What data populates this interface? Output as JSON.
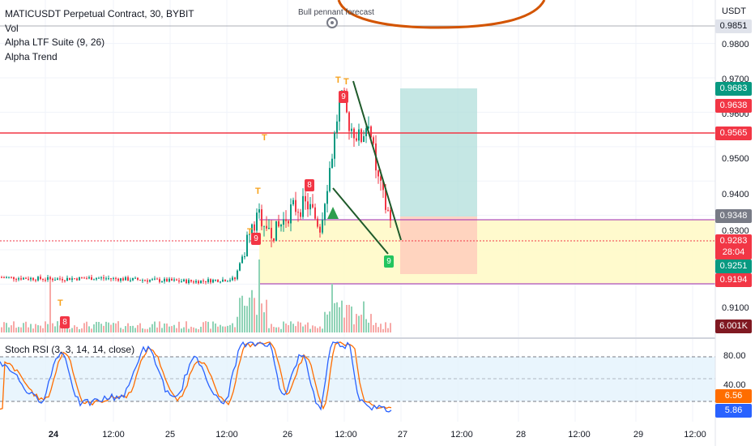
{
  "header": {
    "symbol_line": "MATICUSDT Perpetual Contract, 30, BYBIT",
    "indicators": [
      "Vol",
      "Alpha LTF Suite (9, 26)",
      "Alpha Trend"
    ],
    "currency": "USDT",
    "annotation": "Bull pennant forecast"
  },
  "price_axis": {
    "ticks": [
      "0.9800",
      "0.9700",
      "0.9600",
      "0.9500",
      "0.9400",
      "0.9300",
      "0.9100"
    ],
    "tags": [
      {
        "label": "0.9851",
        "color": "#e0e3eb",
        "text_color": "#131722"
      },
      {
        "label": "0.9683",
        "color": "#089981",
        "text_color": "#ffffff"
      },
      {
        "label": "0.9638",
        "color": "#f23645",
        "text_color": "#ffffff"
      },
      {
        "label": "0.9565",
        "color": "#f23645",
        "text_color": "#ffffff"
      },
      {
        "label": "0.9348",
        "color": "#787b86",
        "text_color": "#ffffff"
      },
      {
        "label": "0.9283",
        "color": "#f23645",
        "text_color": "#ffffff"
      },
      {
        "label": "28:04",
        "color": "#f23645",
        "text_color": "#ffffff"
      },
      {
        "label": "0.9251",
        "color": "#089981",
        "text_color": "#ffffff"
      },
      {
        "label": "0.9194",
        "color": "#f23645",
        "text_color": "#ffffff"
      },
      {
        "label": "6.001K",
        "color": "#801922",
        "text_color": "#ffffff"
      }
    ]
  },
  "rsi": {
    "label": "Stoch RSI (3, 3, 14, 14, close)",
    "ticks": [
      "80.00",
      "40.00"
    ],
    "tags": [
      {
        "label": "6.56",
        "color": "#ff6d00"
      },
      {
        "label": "5.86",
        "color": "#2962ff"
      }
    ]
  },
  "time_axis": [
    "24",
    "12:00",
    "25",
    "12:00",
    "26",
    "12:00",
    "27",
    "12:00",
    "28",
    "12:00",
    "29",
    "12:00"
  ],
  "markers": {
    "td_labels": [
      "8",
      "9",
      "8",
      "9",
      "9"
    ],
    "t_label": "T"
  },
  "colors": {
    "up": "#089981",
    "down": "#f23645",
    "stoch_k": "#2962ff",
    "stoch_d": "#ff6d00",
    "range_fill": "#fff9c4",
    "range_border": "#9c27b0",
    "resistance": "#f23645",
    "target_fill": "#b2dfdb",
    "stop_fill": "#ffccbc",
    "forecast_circle": "#d35400"
  },
  "chart_data": {
    "type": "candlestick",
    "timeframe": "30",
    "key_levels": [
      0.9565,
      0.9348,
      0.9194
    ],
    "long_position": {
      "entry": 0.9348,
      "target": 0.9683,
      "stop": 0.9251
    },
    "last_price": 0.9283,
    "volume_last": "6.001K",
    "stoch_rsi": {
      "k": 5.86,
      "d": 6.56
    }
  }
}
